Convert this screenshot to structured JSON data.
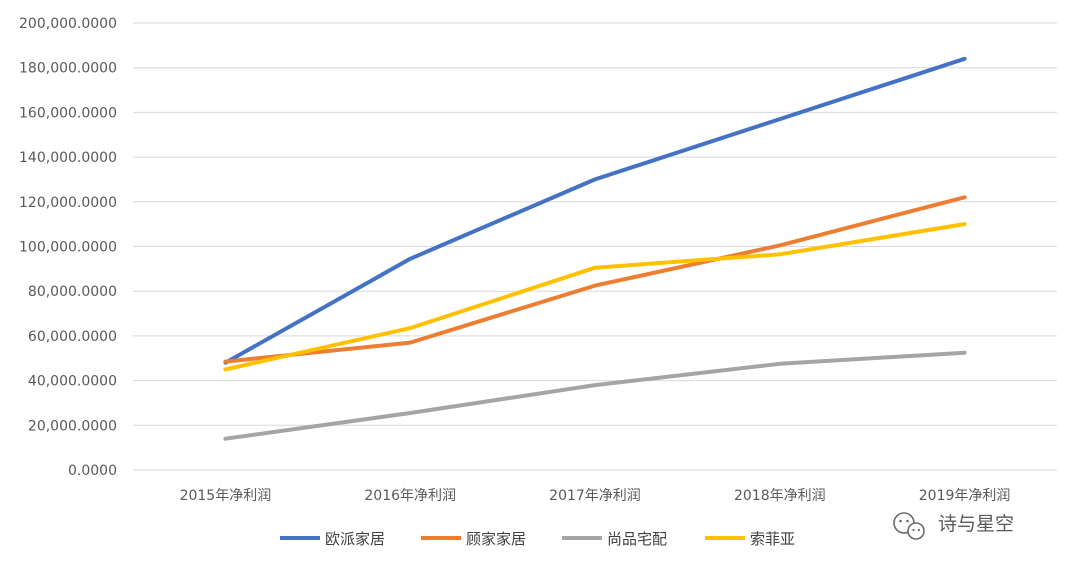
{
  "chart_data": {
    "type": "line",
    "categories": [
      "2015年净利润",
      "2016年净利润",
      "2017年净利润",
      "2018年净利润",
      "2019年净利润"
    ],
    "series": [
      {
        "name": "欧派家居",
        "color": "#4472C4",
        "values": [
          48000,
          94500,
          130000,
          157000,
          184000
        ]
      },
      {
        "name": "顾家家居",
        "color": "#ED7D31",
        "values": [
          48500,
          57000,
          82500,
          100500,
          122000
        ]
      },
      {
        "name": "尚品宅配",
        "color": "#A5A5A5",
        "values": [
          14000,
          25500,
          38000,
          47500,
          52500
        ]
      },
      {
        "name": "索菲亚",
        "color": "#FFC000",
        "values": [
          45000,
          63500,
          90500,
          96500,
          110000
        ]
      }
    ],
    "y_ticks": [
      "0.0000",
      "20,000.0000",
      "40,000.0000",
      "60,000.0000",
      "80,000.0000",
      "100,000.0000",
      "120,000.0000",
      "140,000.0000",
      "160,000.0000",
      "180,000.0000",
      "200,000.0000"
    ],
    "ylim": [
      0,
      200000
    ],
    "grid": true,
    "legend_position": "bottom",
    "title": "",
    "xlabel": "",
    "ylabel": ""
  },
  "watermark": {
    "text": "诗与星空",
    "icon": "wechat-icon"
  }
}
